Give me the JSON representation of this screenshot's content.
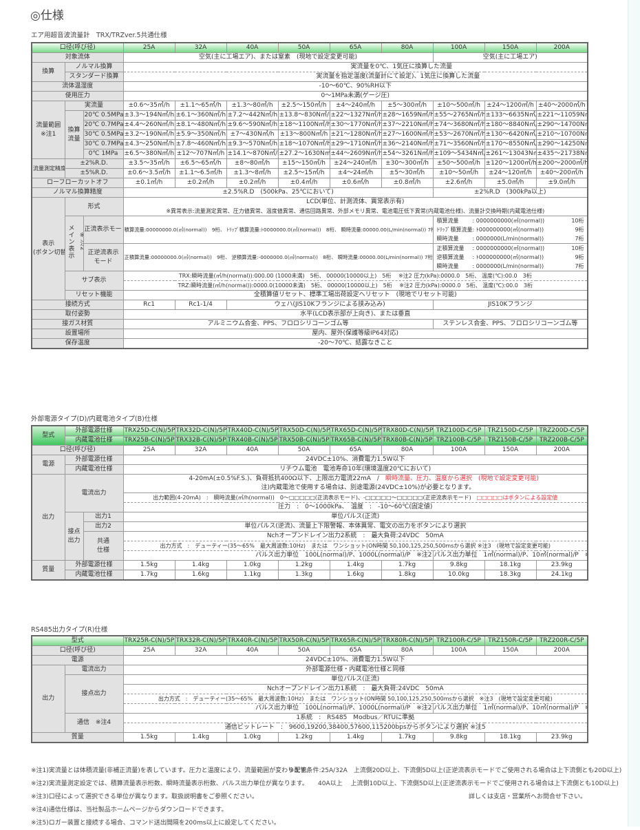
{
  "title": "◎仕様",
  "t1": {
    "subtitle": "エア用超音波流量計　TRX/TRZver.5共通仕様",
    "size_label": "口径(呼び径)",
    "sizes": [
      "25A",
      "32A",
      "40A",
      "50A",
      "65A",
      "80A",
      "100A",
      "150A",
      "200A"
    ],
    "fluid": {
      "label": "対象流体",
      "a": "空気(主に工場エア)、または窒素　(現地で設定変更可能)",
      "b": "空気(主に工場エア)"
    },
    "conv": {
      "label": "換算",
      "normal_label": "ノルマル換算",
      "normal_text": "実流量を0℃、1気圧に換算した流量",
      "standard_label": "スタンダード換算",
      "standard_text": "実流量を指定温度(流量計にて設定)、1気圧に換算した流量"
    },
    "temp": {
      "label": "流体温湿度",
      "text": "-10～60℃、90%RH以下"
    },
    "pressure": {
      "label": "使用圧力",
      "text": "0～1MPa未満(ゲージ圧)"
    },
    "range": {
      "label": "流量範囲",
      "note": "※注1",
      "actual_label": "実流量",
      "actual": [
        "±0.6～35㎥/h",
        "±1.1～65㎥/h",
        "±1.3～80㎥/h",
        "±2.5～150㎥/h",
        "±4～240㎥/h",
        "±5～300㎥/h",
        "±10～500㎥/h",
        "±24～1200㎥/h",
        "±40～2000㎥/h"
      ],
      "conv_label_1": "換算",
      "conv_label_2": "流量",
      "conditions": [
        {
          "label": "20℃ 0.5MPa",
          "values": [
            "±3.3～194N㎥/h",
            "±6.1～360N㎥/h",
            "±7.2～442N㎥/h",
            "±13.8～830N㎥/h",
            "±22～1327N㎥/h",
            "±28～1659N㎥/h",
            "±55～2765N㎥/h",
            "±133～6635N㎥/h",
            "±221～11059N㎥/h"
          ]
        },
        {
          "label": "20℃ 0.7MPa",
          "values": [
            "±4.4～260N㎥/h",
            "±8.1～480N㎥/h",
            "±9.6～590N㎥/h",
            "±18～1100N㎥/h",
            "±30～1770N㎥/h",
            "±37～2210N㎥/h",
            "±74～3680N㎥/h",
            "±180～8840N㎥/h",
            "±290～14700N㎥/h"
          ]
        },
        {
          "label": "30℃ 0.5MPa",
          "values": [
            "±3.2～190N㎥/h",
            "±5.9～350N㎥/h",
            "±7～430N㎥/h",
            "±13～800N㎥/h",
            "±21～1280N㎥/h",
            "±27～1600N㎥/h",
            "±53～2670N㎥/h",
            "±130～6420N㎥/h",
            "±210～10700N㎥/h"
          ]
        },
        {
          "label": "30℃ 0.7MPa",
          "values": [
            "±4.3～250N㎥/h",
            "±7.8～460N㎥/h",
            "±9.3～570N㎥/h",
            "±18～1070N㎥/h",
            "±29～1710N㎥/h",
            "±36～2140N㎥/h",
            "±71～3560N㎥/h",
            "±170～8550N㎥/h",
            "±290～14250N㎥/h"
          ]
        },
        {
          "label": "0℃ 1MPa",
          "values": [
            "±6.5～380N㎥/h",
            "±12～707N㎥/h",
            "±14.1～870N㎥/h",
            "±27.2～1630N㎥/h",
            "±44～2609N㎥/h",
            "±54～3261N㎥/h",
            "±109～5434N㎥/h",
            "±261～13043N㎥/h",
            "±435～21738N㎥/h"
          ]
        }
      ]
    },
    "accuracy": {
      "label": "流量測定精度",
      "r2_label": "±2%R.D.",
      "r2": [
        "±3.5～35㎥/h",
        "±6.5～65㎥/h",
        "±8～80㎥/h",
        "±15～150㎥/h",
        "±24～240㎥/h",
        "±30～300㎥/h",
        "±50～500㎥/h",
        "±120～1200㎥/h",
        "±200～2000㎥/h"
      ],
      "r5_label": "±5%R.D.",
      "r5": [
        "±0.6～3.5㎥/h",
        "±1.1～6.5㎥/h",
        "±1.3～8㎥/h",
        "±2.5～15㎥/h",
        "±4～24㎥/h",
        "±5～30㎥/h",
        "±10～50㎥/h",
        "±24～120㎥/h",
        "±40～200㎥/h"
      ]
    },
    "lowcut": {
      "label": "ローフローカットオフ",
      "values": [
        "±0.1㎥/h",
        "±0.2㎥/h",
        "±0.2㎥/h",
        "±0.4㎥/h",
        "±0.6㎥/h",
        "±0.8㎥/h",
        "±2.6㎥/h",
        "±5.0㎥/h",
        "±9.0㎥/h"
      ]
    },
    "normal_acc": {
      "label": "ノルマル換算精度",
      "a": "±2.5%R.D　(500kPa、25℃において)",
      "b": "±2%R.D　(300kPa以上)"
    },
    "display": {
      "label_1": "表示",
      "label_2": "(ボタン切替)",
      "format_label": "形式",
      "format_1": "LCD(単位、計測流体、異常表示有)",
      "format_2": "※異常表示:流量測定異常、圧力値異常、温度値異常、通信回路異常、外部メモリ異常、電池電圧低下異常(内蔵電池仕様)、流量計交換時期(内蔵電池仕様)",
      "main_label": "メイン表示",
      "main_note": "※注2",
      "forward_label": "正流表示モード",
      "forward_left": "積算流量:00000000.0(㎥(normal))　9桁、 ﾄﾘｯﾌﾟ積算流量:ﾄ0000000.0(㎥(normal))　8桁、 瞬時流量:00000.00(L/min(normal)) 7桁",
      "forward_right": [
        [
          "積算流量",
          ":  0000000000(㎥(normal))",
          "10桁"
        ],
        [
          "ﾄﾘｯﾌﾟ積算流量",
          ":  ﾄ000000000(㎥(normal))",
          "9桁"
        ],
        [
          "瞬時流量",
          ":        0000000(L/min(normal))",
          "7桁"
        ]
      ],
      "bidir_label_1": "正逆流表示",
      "bidir_label_2": "モード",
      "bidir_left": "正積算流量:00000000.0(㎥(normal))　9桁、 逆積算流量:-0000000.0(㎥(normal))　8桁、 瞬時流量:00000.00(L/min(normal)) 7桁",
      "bidir_right": [
        [
          "正積算流量",
          ":  0000000000(㎥(normal))",
          "10桁"
        ],
        [
          "逆積算流量",
          ":  ﾄ000000000(㎥(normal))",
          "9桁"
        ],
        [
          "瞬時流量",
          ":        0000000(L/min(normal))",
          "7桁"
        ]
      ],
      "sub_label": "サブ表示",
      "sub_1": "TRX:瞬時流量(㎥/h(normal)):000.00 (1000未満)　5桁、 00000(10000以上)　5桁　 ※注2 圧力(kPa):0000.0　5桁、 温度(℃):00.0　3桁",
      "sub_2": "TRZ:瞬時流量(㎥/h(normal)):0000.0(10000未満)　5桁、 00000(10000以上)　5桁　 ※注2 圧力(kPa):0000.0　5桁、 温度(℃):00.0　3桁",
      "reset_label": "リセット機能",
      "reset": "全積算値リセット、標準工場出荷設定へリセット　(現地でリセット可能)"
    },
    "connection": {
      "label": "接続方式",
      "c25": "Rc1",
      "c32": "Rc1-1/4",
      "wafer": "ウェハ(JIS10Kフランジによる挟み込み)",
      "flange": "JIS10Kフランジ"
    },
    "mounting": {
      "label": "取付姿勢",
      "text": "水平(LCD表示部が上向き)、または垂直"
    },
    "material": {
      "label": "接ガス材質",
      "a": "アルミニウム合金、PPS、フロロシリコーンゴム等",
      "b": "ステンレス合金、PPS、フロロシリコーンゴム等"
    },
    "location": {
      "label": "設置場所",
      "text": "屋内、屋外(保護等級IP64対応)"
    },
    "storage": {
      "label": "保存温度",
      "text": "-20～70℃、結露なきこと"
    }
  },
  "t2": {
    "title": "外部電源タイプ(D)/内蔵電池タイプ(B)仕様",
    "model_label": "型式",
    "ext_label": "外部電源仕様",
    "int_label": "内蔵電池仕様",
    "models_d": [
      "TRX25D-C(N)/5P",
      "TRX32D-C(N)/5P",
      "TRX40D-C(N)/5P",
      "TRX50D-C(N)/5P",
      "TRX65D-C(N)/5P",
      "TRX80D-C(N)/5P",
      "TRZ100D-C/5P",
      "TRZ150D-C/5P",
      "TRZ200D-C/5P"
    ],
    "models_b": [
      "TRX25B-C(N)/5P",
      "TRX32B-C(N)/5P",
      "TRX40B-C(N)/5P",
      "TRX50B-C(N)/5P",
      "TRX65B-C(N)/5P",
      "TRX80B-C(N)/5P",
      "TRZ100B-C/5P",
      "TRZ150B-C/5P",
      "TRZ200B-C/5P"
    ],
    "size_label": "口径(呼び径)",
    "power_label": "電源",
    "power_ext": "24VDC±10%、消費電力1.5W以下",
    "power_int": "リチウム電池　電池寿命10年(環境温度20℃において)",
    "output_label": "出力",
    "current_label": "電流出力",
    "current_1": "4-20mA(±0.5%F.S.)、負荷抵抗400Ω以下、上限出力電流22mA　/　",
    "current_1_red": "瞬時流量、圧力、温度から選択　(現地で設定変更可能)",
    "current_2_red": "注)内蔵電池で使用する場合は、別途電源(24VDC±10%)が必要となります。",
    "current_3": "出力範囲(4-20mA)　:　瞬時流量(㎥/h(normal))　0～□□□□□(正流表示モード)、-□□□□□～□□□□□(正逆流表示モード)　",
    "current_3_red": "□□□□□はボタンによる設定値",
    "current_4": "圧力　:　0～1000kPa、　温度　:　-10～60℃(固定値)",
    "contact_1": "接点",
    "contact_2": "出力",
    "out1_label": "出力1",
    "out1": "単位パルス(正流)",
    "out2_label": "出力2",
    "out2": "単位パルス(逆流)、流量上下限警報、本体異常、電文の出力をボタンにより選択",
    "common_1": "共通",
    "common_2": "仕様",
    "common_a": "Nchオープンドレイン出力2系統　:　最大負荷:24VDC　50mA",
    "common_b": "出力方式　:　デューティー(35～65%　最大周波数:10Hz)　または　ワンショット(ON時間 50,100,125,250,500msから選択 ※注3　(現地で設定変更可能)",
    "pulse_a": "パルス出力単位　100L(normal)/P、1000L(normal)/P　※注2",
    "pulse_b": "パルス出力単位　1㎥(normal)/P、10㎥(normal)/P　※注2",
    "mass_label": "質量",
    "mass_ext": [
      "1.5kg",
      "1.4kg",
      "1.0kg",
      "1.2kg",
      "1.4kg",
      "1.7kg",
      "9.8kg",
      "18.1kg",
      "23.9kg"
    ],
    "mass_int": [
      "1.7kg",
      "1.6kg",
      "1.1kg",
      "1.3kg",
      "1.6kg",
      "1.8kg",
      "10.0kg",
      "18.3kg",
      "24.1kg"
    ]
  },
  "t3": {
    "title": "RS485出力タイプ(R)仕様",
    "model_label": "型式",
    "models_r": [
      "TRX25R-C(N)/5P",
      "TRX32R-C(N)/5P",
      "TRX40R-C(N)/5P",
      "TRX50R-C(N)/5P",
      "TRX65R-C(N)/5P",
      "TRX80R-C(N)/5P",
      "TRZ100R-C/5P",
      "TRZ150R-C/5P",
      "TRZ200R-C/5P"
    ],
    "size_label": "口径(呼び径)",
    "power_label": "電源",
    "power": "24VDC±10%、消費電力1.5W以下",
    "output_label": "出力",
    "current_label": "電流出力",
    "current": "外部電源仕様・内蔵電池仕様と同様",
    "contact_label": "接点出力",
    "contact_1": "単位パルス(正流)",
    "contact_2": "Nchオープンドレイン出力1系統　:　最大負荷:24VDC　50mA",
    "contact_3": "出力方式　:　デューティー(35～65%　最大周波数:10Hz)　または　ワンショット(ON時間 50,100,125,250,500msから選択　※注3　(現地で設定変更可能)",
    "pulse_a": "パルス出力単位　100L(normal)/P、1000L(normal)/P　※注2",
    "pulse_b": "パルス出力単位　1㎥(normal)/P、10㎥(normal)/P　※注2",
    "comm_label": "通信　※注4",
    "comm_1": "1系統　:　RS485　Modbus／RTUに準拠",
    "comm_2": "通信ビットレート　:　9600,19200,38400,57600,115200bpsからボタンにより選択 ※注5",
    "mass_label": "質量",
    "mass": [
      "1.5kg",
      "1.4kg",
      "1.0kg",
      "1.2kg",
      "1.4kg",
      "1.7kg",
      "9.8kg",
      "18.1kg",
      "23.9kg"
    ]
  },
  "notes": [
    "※注1)実流量とは体積流量(非補正流量)を表しています。圧力と温度により、流量範囲が変わります。",
    "※注2)実流量測定設定では、積算流量表示桁数、瞬時流量表示桁数、パルス出力単位が異なります。",
    "※注3)口径によって選択できる単位が異なります。取扱説明書をご参照ください。",
    "※注4)通信仕様は、当社製品ホームページからダウンロードできます。",
    "※注5)ロガー装置と接続する場合、コマンド送出間隔を200ms以上に設定してください。"
  ],
  "piping": [
    "※配管条件:25A/32A　上流側20D以上、下流側5D以上(正逆流表示モードでご使用される場合は上下流側とも20D以上)",
    "40A以上　 上流側10D以上、下流側5D以上(正逆流表示モードでご使用される場合は上下流側とも10D以上)",
    "詳しくは支店・営業所へお問合せ下さい。"
  ]
}
